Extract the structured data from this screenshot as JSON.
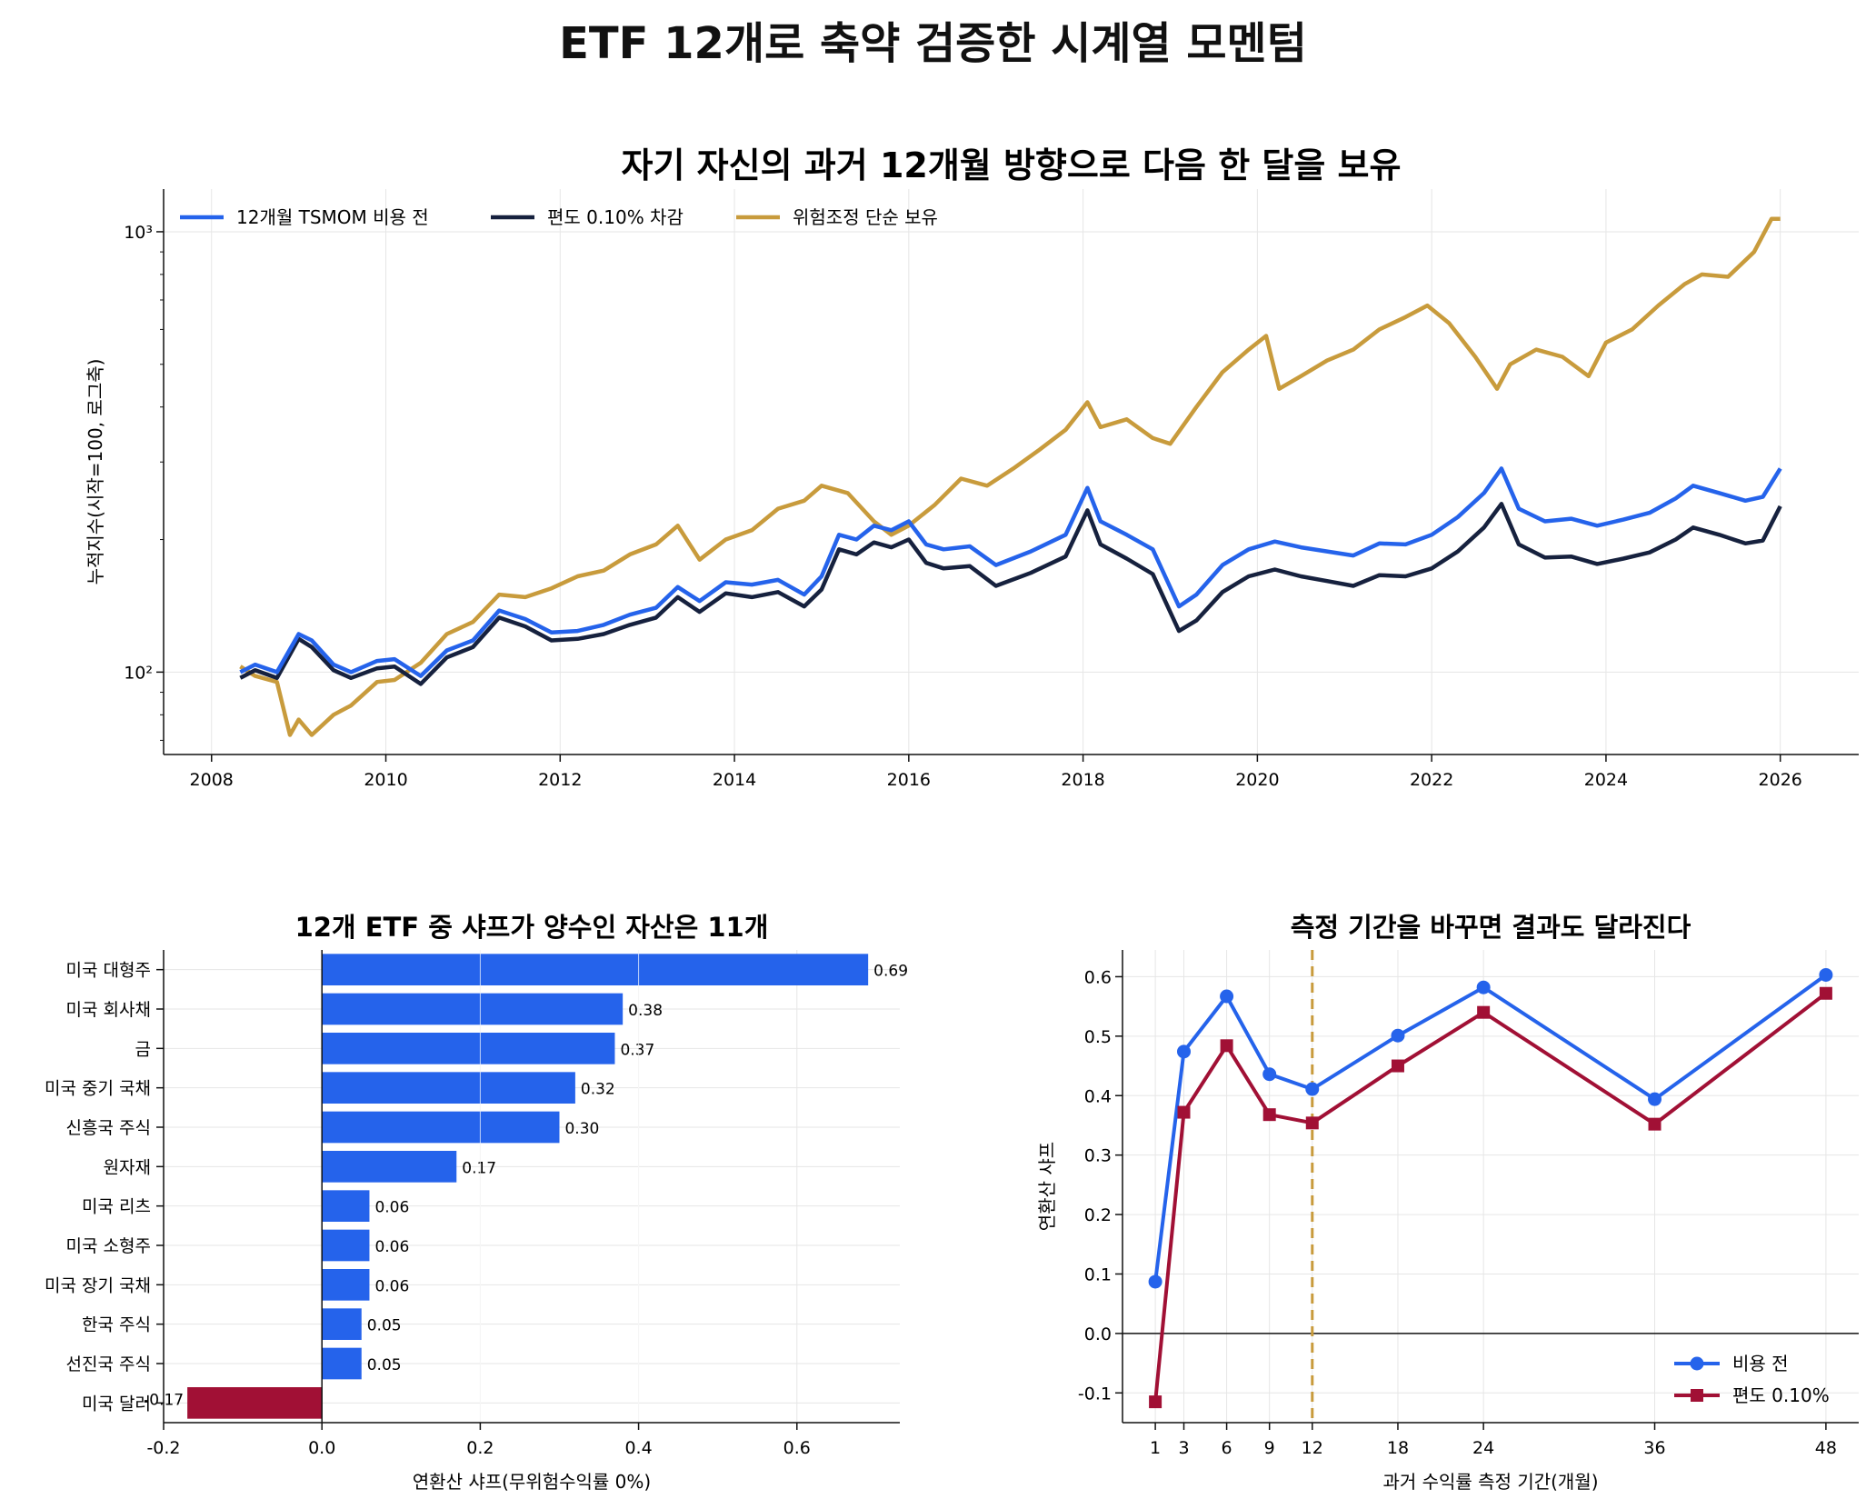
{
  "figure": {
    "title": "ETF 12개로 축약 검증한 시계열 모멘텀"
  },
  "chart_data": [
    {
      "id": "cumulative",
      "type": "line",
      "title": "자기 자신의 과거 12개월 방향으로 다음 한 달을 보유",
      "xlabel": "",
      "ylabel": "누적지수(시작=100, 로그축)",
      "yscale": "log",
      "ylim": [
        65,
        1250
      ],
      "xlim": [
        2007.45,
        2026.9
      ],
      "x_ticks": [
        "2008",
        "2010",
        "2012",
        "2014",
        "2016",
        "2018",
        "2020",
        "2022",
        "2024",
        "2026"
      ],
      "y_ticks": [
        "10³",
        "10²"
      ],
      "grid": true,
      "legend_position": "top-left",
      "series": [
        {
          "name": "12개월 TSMOM 비용 전",
          "color": "#2563eb",
          "x": [
            2008.33,
            2008.5,
            2008.75,
            2009.0,
            2009.15,
            2009.4,
            2009.6,
            2009.9,
            2010.1,
            2010.4,
            2010.7,
            2011.0,
            2011.3,
            2011.6,
            2011.9,
            2012.2,
            2012.5,
            2012.8,
            2013.1,
            2013.35,
            2013.6,
            2013.9,
            2014.2,
            2014.5,
            2014.8,
            2015.0,
            2015.2,
            2015.4,
            2015.6,
            2015.8,
            2016.0,
            2016.2,
            2016.4,
            2016.7,
            2017.0,
            2017.4,
            2017.8,
            2018.05,
            2018.2,
            2018.5,
            2018.8,
            2019.1,
            2019.3,
            2019.6,
            2019.9,
            2020.2,
            2020.5,
            2020.8,
            2021.1,
            2021.4,
            2021.7,
            2022.0,
            2022.3,
            2022.6,
            2022.8,
            2023.0,
            2023.3,
            2023.6,
            2023.9,
            2024.2,
            2024.5,
            2024.8,
            2025.0,
            2025.3,
            2025.6,
            2025.8,
            2026.0
          ],
          "values": [
            100,
            104,
            100,
            122,
            118,
            104,
            100,
            106,
            107,
            98,
            112,
            118,
            138,
            132,
            123,
            124,
            128,
            135,
            140,
            156,
            145,
            160,
            158,
            162,
            150,
            165,
            205,
            200,
            215,
            210,
            220,
            195,
            190,
            193,
            175,
            188,
            205,
            262,
            220,
            205,
            190,
            141,
            150,
            175,
            190,
            198,
            192,
            188,
            184,
            196,
            195,
            205,
            225,
            255,
            290,
            235,
            220,
            223,
            215,
            222,
            230,
            248,
            265,
            255,
            245,
            250,
            290
          ]
        },
        {
          "name": "편도 0.10% 차감",
          "color": "#16213e",
          "x": [
            2008.33,
            2008.5,
            2008.75,
            2009.0,
            2009.15,
            2009.4,
            2009.6,
            2009.9,
            2010.1,
            2010.4,
            2010.7,
            2011.0,
            2011.3,
            2011.6,
            2011.9,
            2012.2,
            2012.5,
            2012.8,
            2013.1,
            2013.35,
            2013.6,
            2013.9,
            2014.2,
            2014.5,
            2014.8,
            2015.0,
            2015.2,
            2015.4,
            2015.6,
            2015.8,
            2016.0,
            2016.2,
            2016.4,
            2016.7,
            2017.0,
            2017.4,
            2017.8,
            2018.05,
            2018.2,
            2018.5,
            2018.8,
            2019.1,
            2019.3,
            2019.6,
            2019.9,
            2020.2,
            2020.5,
            2020.8,
            2021.1,
            2021.4,
            2021.7,
            2022.0,
            2022.3,
            2022.6,
            2022.8,
            2023.0,
            2023.3,
            2023.6,
            2023.9,
            2024.2,
            2024.5,
            2024.8,
            2025.0,
            2025.3,
            2025.6,
            2025.8,
            2026.0
          ],
          "values": [
            97,
            101,
            97,
            119,
            114,
            101,
            97,
            102,
            103,
            94,
            108,
            114,
            133,
            127,
            118,
            119,
            122,
            128,
            133,
            148,
            137,
            151,
            148,
            152,
            141,
            154,
            190,
            185,
            197,
            192,
            200,
            177,
            172,
            174,
            157,
            168,
            183,
            233,
            195,
            181,
            167,
            124,
            131,
            152,
            165,
            171,
            165,
            161,
            157,
            166,
            165,
            172,
            188,
            213,
            241,
            195,
            182,
            183,
            176,
            181,
            187,
            200,
            213,
            205,
            196,
            199,
            238
          ]
        },
        {
          "name": "위험조정 단순 보유",
          "color": "#c89b3c",
          "x": [
            2008.33,
            2008.5,
            2008.75,
            2008.9,
            2009.0,
            2009.15,
            2009.4,
            2009.6,
            2009.9,
            2010.1,
            2010.4,
            2010.7,
            2011.0,
            2011.3,
            2011.6,
            2011.9,
            2012.2,
            2012.5,
            2012.8,
            2013.1,
            2013.35,
            2013.6,
            2013.9,
            2014.2,
            2014.5,
            2014.8,
            2015.0,
            2015.3,
            2015.6,
            2015.8,
            2016.0,
            2016.3,
            2016.6,
            2016.9,
            2017.2,
            2017.5,
            2017.8,
            2018.05,
            2018.2,
            2018.5,
            2018.8,
            2019.0,
            2019.3,
            2019.6,
            2019.9,
            2020.1,
            2020.25,
            2020.5,
            2020.8,
            2021.1,
            2021.4,
            2021.7,
            2021.95,
            2022.2,
            2022.5,
            2022.75,
            2022.9,
            2023.2,
            2023.5,
            2023.8,
            2024.0,
            2024.3,
            2024.6,
            2024.9,
            2025.1,
            2025.4,
            2025.7,
            2025.9,
            2026.0
          ],
          "values": [
            103,
            98,
            95,
            72,
            78,
            72,
            80,
            84,
            95,
            96,
            105,
            122,
            130,
            150,
            148,
            155,
            165,
            170,
            185,
            195,
            215,
            180,
            200,
            210,
            235,
            245,
            265,
            255,
            220,
            205,
            215,
            240,
            275,
            265,
            290,
            320,
            355,
            410,
            360,
            375,
            340,
            330,
            400,
            480,
            540,
            580,
            440,
            470,
            510,
            540,
            600,
            640,
            680,
            620,
            520,
            440,
            500,
            540,
            520,
            470,
            560,
            600,
            680,
            760,
            800,
            790,
            900,
            1070,
            1070
          ]
        }
      ]
    },
    {
      "id": "etf-sharpe",
      "type": "bar",
      "orientation": "horizontal",
      "title": "12개 ETF 중 샤프가 양수인 자산은 11개",
      "xlabel": "연환산 샤프(무위험수익률 0%)",
      "ylabel": "",
      "xlim": [
        -0.2,
        0.73
      ],
      "x_ticks": [
        "-0.2",
        "0.0",
        "0.2",
        "0.4",
        "0.6"
      ],
      "grid": true,
      "positive_color": "#2563eb",
      "negative_color": "#a11035",
      "categories": [
        "미국 대형주",
        "미국 회사채",
        "금",
        "미국 중기 국채",
        "신흥국 주식",
        "원자재",
        "미국 리츠",
        "미국 소형주",
        "미국 장기 국채",
        "한국 주식",
        "선진국 주식",
        "미국 달러"
      ],
      "values": [
        0.69,
        0.38,
        0.37,
        0.32,
        0.3,
        0.17,
        0.06,
        0.06,
        0.06,
        0.05,
        0.05,
        -0.17
      ],
      "value_labels": [
        "0.69",
        "0.38",
        "0.37",
        "0.32",
        "0.30",
        "0.17",
        "0.06",
        "0.06",
        "0.06",
        "0.05",
        "0.05",
        "-0.17"
      ]
    },
    {
      "id": "lookback",
      "type": "line",
      "title": "측정 기간을 바꾸면 결과도 달라진다",
      "xlabel": "과거 수익률 측정 기간(개월)",
      "ylabel": "연환산 샤프",
      "x": [
        1,
        3,
        6,
        9,
        12,
        18,
        24,
        36,
        48
      ],
      "x_ticks": [
        "1",
        "3",
        "6",
        "9",
        "12",
        "18",
        "24",
        "36",
        "48"
      ],
      "y_ticks": [
        "-0.1",
        "0.0",
        "0.1",
        "0.2",
        "0.3",
        "0.4",
        "0.5",
        "0.6"
      ],
      "xlim": [
        -1.3,
        50.3
      ],
      "ylim": [
        -0.15,
        0.645
      ],
      "grid": true,
      "reference_x": 12,
      "reference_color": "#c89b3c",
      "legend_position": "bottom-right",
      "series": [
        {
          "name": "비용 전",
          "color": "#2563eb",
          "marker": "circle",
          "values": [
            0.087,
            0.474,
            0.567,
            0.436,
            0.411,
            0.501,
            0.582,
            0.394,
            0.603
          ]
        },
        {
          "name": "편도 0.10%",
          "color": "#a11035",
          "marker": "square",
          "values": [
            -0.115,
            0.372,
            0.484,
            0.368,
            0.354,
            0.45,
            0.54,
            0.352,
            0.572
          ]
        }
      ]
    }
  ]
}
